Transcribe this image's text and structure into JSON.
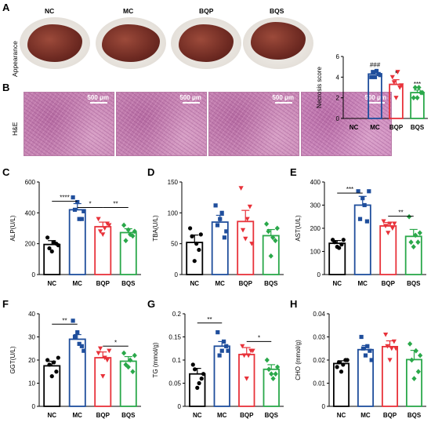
{
  "panel_letters": {
    "A": "A",
    "B": "B",
    "C": "C",
    "D": "D",
    "E": "E",
    "F": "F",
    "G": "G",
    "H": "H"
  },
  "row_labels": {
    "appearance": "Appearance",
    "he": "H&E"
  },
  "groups": [
    "NC",
    "MC",
    "BQP",
    "BQS"
  ],
  "scale_bar": "500 μm",
  "colors": {
    "NC": "#000000",
    "MC": "#1f4e9c",
    "BQP": "#e8323a",
    "BQS": "#2aa84a"
  },
  "chart_data": [
    {
      "id": "necrosis",
      "type": "bar",
      "categories": [
        "NC",
        "MC",
        "BQP",
        "BQS"
      ],
      "ylabel": "Necrosis score",
      "ylim": [
        0,
        6
      ],
      "yticks": [
        0,
        2,
        4,
        6
      ],
      "values": [
        0,
        4.3,
        3.3,
        2.5
      ],
      "errors": [
        0,
        0.3,
        0.45,
        0.25
      ],
      "points": [
        [],
        [
          4,
          4,
          4.3,
          4.5,
          4.6,
          4.2
        ],
        [
          4,
          2,
          3,
          3.5,
          4.5,
          3.2
        ],
        [
          2,
          2,
          2.5,
          3,
          3,
          2.5
        ]
      ],
      "annotations": [
        {
          "group": "MC",
          "text": "###"
        },
        {
          "group": "BQP",
          "text": "*"
        },
        {
          "group": "BQS",
          "text": "***"
        }
      ],
      "brackets": []
    },
    {
      "id": "alp",
      "type": "bar",
      "categories": [
        "NC",
        "MC",
        "BQP",
        "BQS"
      ],
      "ylabel": "ALP(U/L)",
      "ylim": [
        0,
        600
      ],
      "yticks": [
        0,
        200,
        400,
        600
      ],
      "values": [
        195,
        420,
        310,
        272
      ],
      "errors": [
        25,
        40,
        30,
        25
      ],
      "points": [
        [
          240,
          150,
          200,
          170,
          210,
          190
        ],
        [
          500,
          470,
          360,
          420,
          360,
          410
        ],
        [
          360,
          260,
          330,
          280,
          300,
          320
        ],
        [
          320,
          290,
          250,
          220,
          260,
          280
        ]
      ],
      "annotations": [],
      "brackets": [
        {
          "from": "NC",
          "to": "MC",
          "text": "****",
          "y": 475
        },
        {
          "from": "MC",
          "to": "BQP",
          "text": "*",
          "y": 435
        },
        {
          "from": "BQP",
          "to": "BQS",
          "text": "**",
          "y": 435
        }
      ]
    },
    {
      "id": "tba",
      "type": "bar",
      "categories": [
        "NC",
        "MC",
        "BQP",
        "BQS"
      ],
      "ylabel": "TBA(U/L)",
      "ylim": [
        0,
        150
      ],
      "yticks": [
        0,
        50,
        100,
        150
      ],
      "values": [
        52,
        85,
        86,
        63
      ],
      "errors": [
        12,
        11,
        18,
        10
      ],
      "points": [
        [
          75,
          22,
          40,
          62,
          50,
          65
        ],
        [
          112,
          90,
          60,
          80,
          100,
          70
        ],
        [
          140,
          58,
          110,
          72,
          90,
          50
        ],
        [
          82,
          30,
          55,
          70,
          60,
          75
        ]
      ],
      "annotations": [],
      "brackets": []
    },
    {
      "id": "ast",
      "type": "bar",
      "categories": [
        "NC",
        "MC",
        "BQP",
        "BQS"
      ],
      "ylabel": "AST(U/L)",
      "ylim": [
        0,
        400
      ],
      "yticks": [
        0,
        100,
        200,
        300,
        400
      ],
      "values": [
        135,
        300,
        210,
        165
      ],
      "errors": [
        12,
        38,
        15,
        30
      ],
      "points": [
        [
          150,
          120,
          130,
          140,
          115,
          150
        ],
        [
          360,
          330,
          230,
          240,
          300,
          360
        ],
        [
          230,
          180,
          200,
          210,
          220,
          220
        ],
        [
          250,
          120,
          140,
          140,
          170,
          180
        ]
      ],
      "annotations": [],
      "brackets": [
        {
          "from": "NC",
          "to": "MC",
          "text": "***",
          "y": 352
        },
        {
          "from": "BQP",
          "to": "BQS",
          "text": "**",
          "y": 252
        }
      ]
    },
    {
      "id": "ggt",
      "type": "bar",
      "categories": [
        "NC",
        "MC",
        "BQP",
        "BQS"
      ],
      "ylabel": "GGT(U/L)",
      "ylim": [
        0,
        40
      ],
      "yticks": [
        0,
        10,
        20,
        30,
        40
      ],
      "values": [
        17.5,
        29,
        21,
        19.5
      ],
      "errors": [
        2,
        2,
        2.5,
        2
      ],
      "points": [
        [
          20,
          13,
          15,
          18,
          19,
          21
        ],
        [
          37,
          32,
          26,
          30,
          27,
          24
        ],
        [
          23,
          13,
          20,
          25,
          21,
          24
        ],
        [
          23,
          17,
          15,
          18,
          20,
          22
        ]
      ],
      "annotations": [],
      "brackets": [
        {
          "from": "NC",
          "to": "MC",
          "text": "**",
          "y": 35.5
        },
        {
          "from": "BQP",
          "to": "BQS",
          "text": "*",
          "y": 26
        }
      ]
    },
    {
      "id": "tg",
      "type": "bar",
      "categories": [
        "NC",
        "MC",
        "BQP",
        "BQS"
      ],
      "ylabel": "TG (mmol/g)",
      "ylim": [
        0,
        0.2
      ],
      "yticks": [
        0,
        0.05,
        0.1,
        0.15,
        0.2
      ],
      "values": [
        0.07,
        0.13,
        0.112,
        0.08
      ],
      "errors": [
        0.012,
        0.01,
        0.015,
        0.01
      ],
      "points": [
        [
          0.09,
          0.04,
          0.06,
          0.08,
          0.05,
          0.07
        ],
        [
          0.16,
          0.12,
          0.13,
          0.11,
          0.14,
          0.12
        ],
        [
          0.13,
          0.06,
          0.12,
          0.11,
          0.11,
          0.12
        ],
        [
          0.1,
          0.07,
          0.07,
          0.08,
          0.06,
          0.085
        ]
      ],
      "annotations": [],
      "brackets": [
        {
          "from": "NC",
          "to": "MC",
          "text": "**",
          "y": 0.18
        },
        {
          "from": "BQP",
          "to": "BQS",
          "text": "*",
          "y": 0.14
        }
      ]
    },
    {
      "id": "cho",
      "type": "bar",
      "categories": [
        "NC",
        "MC",
        "BQP",
        "BQS"
      ],
      "ylabel": "CHO (mmol/g)",
      "ylim": [
        0,
        0.04
      ],
      "yticks": [
        0,
        0.01,
        0.02,
        0.03,
        0.04
      ],
      "values": [
        0.0185,
        0.0245,
        0.0258,
        0.0202
      ],
      "errors": [
        0.0012,
        0.0018,
        0.0025,
        0.004
      ],
      "points": [
        [
          0.017,
          0.015,
          0.02,
          0.019,
          0.018,
          0.02
        ],
        [
          0.03,
          0.022,
          0.024,
          0.025,
          0.026,
          0.02
        ],
        [
          0.031,
          0.02,
          0.028,
          0.026,
          0.025,
          0.025
        ],
        [
          0.027,
          0.012,
          0.015,
          0.02,
          0.024,
          0.022
        ]
      ],
      "annotations": [],
      "brackets": []
    }
  ]
}
